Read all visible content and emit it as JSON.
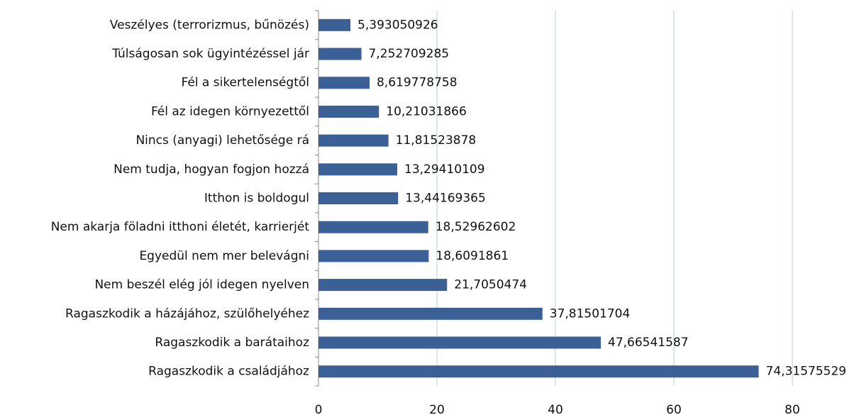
{
  "chart_data": {
    "type": "bar",
    "orientation": "horizontal",
    "categories": [
      "Veszélyes (terrorizmus, bűnözés)",
      "Túlságosan sok ügyintézéssel jár",
      "Fél a sikertelenségtől",
      "Fél az idegen környezettől",
      "Nincs (anyagi) lehetősége rá",
      "Nem tudja, hogyan fogjon hozzá",
      "Itthon is boldogul",
      "Nem akarja föladni itthoni életét, karrierjét",
      "Egyedül nem mer belevágni",
      "Nem beszél elég jól idegen nyelven",
      "Ragaszkodik a házájához, szülőhelyéhez",
      "Ragaszkodik a barátaihoz",
      "Ragaszkodik a családjához"
    ],
    "values": [
      5.393050926,
      7.252709285,
      8.619778758,
      10.21031866,
      11.81523878,
      13.29410109,
      13.44169365,
      18.52962602,
      18.6091861,
      21.7050474,
      37.81501704,
      47.66541587,
      74.31575529
    ],
    "value_labels": [
      "5,393050926",
      "7,252709285",
      "8,619778758",
      "10,21031866",
      "11,81523878",
      "13,29410109",
      "13,44169365",
      "18,52962602",
      "18,6091861",
      "21,7050474",
      "37,81501704",
      "47,66541587",
      "74,31575529"
    ],
    "color": "#3b6096",
    "xlim": [
      0,
      80
    ],
    "xticks": [
      0,
      20,
      40,
      60,
      80
    ],
    "grid": true
  }
}
